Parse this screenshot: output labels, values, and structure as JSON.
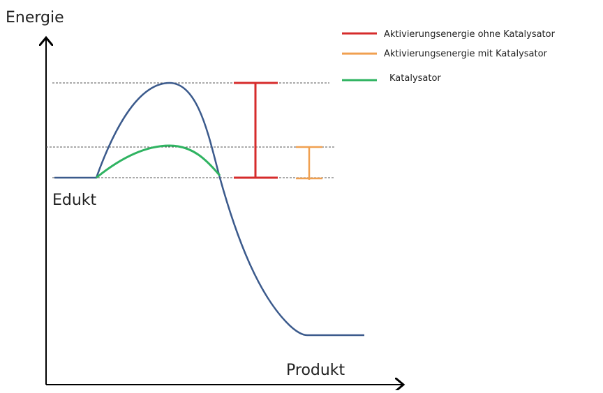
{
  "axis_label": "Energie",
  "legend": [
    "Aktivierungsenergie ohne Katalysator",
    "Aktivierungsenergie mit Katalysator",
    "Katalysator"
  ],
  "labels": {
    "start": "Edukt",
    "end": "Produkt"
  }
}
